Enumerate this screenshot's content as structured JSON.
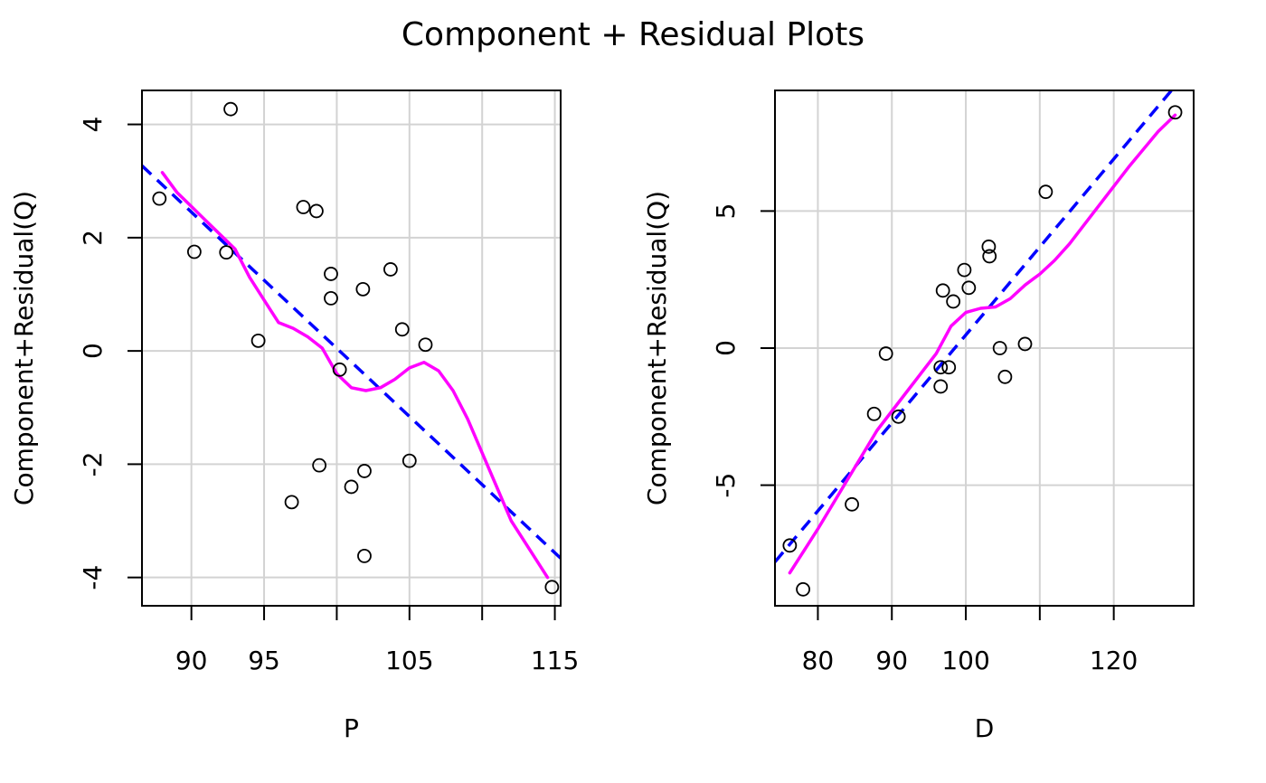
{
  "title": "Component + Residual Plots",
  "chart_data": [
    {
      "type": "scatter",
      "xlabel": "P",
      "ylabel": "Component+Residual(Q)",
      "xlim": [
        86.6,
        115.4
      ],
      "ylim": [
        -4.5,
        4.6
      ],
      "xticks": [
        90,
        95,
        100,
        105,
        110,
        115
      ],
      "xtick_labels": [
        "90",
        "95",
        "",
        "105",
        "",
        "115"
      ],
      "yticks": [
        -4,
        -2,
        0,
        2,
        4
      ],
      "ytick_labels": [
        "-4",
        "-2",
        "0",
        "2",
        "4"
      ],
      "grid": true,
      "points": {
        "x": [
          87.8,
          90.2,
          92.4,
          92.7,
          94.6,
          96.9,
          97.7,
          98.6,
          98.8,
          99.6,
          99.6,
          100.2,
          101.0,
          101.8,
          101.9,
          101.9,
          103.7,
          104.5,
          105.0,
          106.1,
          114.8
        ],
        "y": [
          2.69,
          1.75,
          1.74,
          4.27,
          0.18,
          -2.67,
          2.54,
          2.47,
          -2.02,
          1.36,
          0.93,
          -0.33,
          -2.4,
          1.09,
          -2.12,
          -3.62,
          1.44,
          0.38,
          -1.94,
          0.11,
          -4.17
        ]
      },
      "fit_line": {
        "color": "#0000ff",
        "style": "dashed",
        "x": [
          86.6,
          115.4
        ],
        "y": [
          3.27,
          -3.66
        ]
      },
      "smooth_line": {
        "color": "#ff00ff",
        "x": [
          88,
          89,
          90,
          91,
          92,
          93,
          94,
          95,
          96,
          97,
          98,
          99,
          100,
          101,
          102,
          103,
          104,
          105,
          106,
          107,
          108,
          109,
          110,
          111,
          112,
          113,
          114,
          114.5
        ],
        "y": [
          3.15,
          2.8,
          2.55,
          2.3,
          2.05,
          1.8,
          1.3,
          0.9,
          0.5,
          0.4,
          0.25,
          0.05,
          -0.4,
          -0.65,
          -0.7,
          -0.65,
          -0.5,
          -0.3,
          -0.2,
          -0.35,
          -0.7,
          -1.2,
          -1.8,
          -2.4,
          -3.0,
          -3.4,
          -3.8,
          -4.0
        ]
      }
    },
    {
      "type": "scatter",
      "xlabel": "D",
      "ylabel": "Component+Residual(Q)",
      "xlim": [
        74.2,
        130.8
      ],
      "ylim": [
        -9.4,
        9.4
      ],
      "xticks": [
        80,
        90,
        100,
        110,
        120
      ],
      "xtick_labels": [
        "80",
        "90",
        "100",
        "",
        "120"
      ],
      "yticks": [
        -5,
        0,
        5
      ],
      "ytick_labels": [
        "-5",
        "0",
        "5"
      ],
      "grid": true,
      "points": {
        "x": [
          76.2,
          78.0,
          84.6,
          87.6,
          89.2,
          90.9,
          96.6,
          96.6,
          96.9,
          97.7,
          98.3,
          99.8,
          100.4,
          103.1,
          103.2,
          104.6,
          105.3,
          108.0,
          110.8,
          128.3
        ],
        "y": [
          -7.2,
          -8.8,
          -5.7,
          -2.4,
          -0.2,
          -2.5,
          -0.7,
          -1.4,
          2.1,
          -0.7,
          1.7,
          2.85,
          2.2,
          3.7,
          3.35,
          0.0,
          -1.05,
          0.15,
          5.7,
          8.6
        ]
      },
      "fit_line": {
        "color": "#0000ff",
        "style": "dashed",
        "x": [
          74.2,
          127.8
        ],
        "y": [
          -7.8,
          9.4
        ]
      },
      "smooth_line": {
        "color": "#ff00ff",
        "x": [
          76.2,
          80,
          84,
          88,
          92,
          96,
          98,
          100,
          102,
          104,
          106,
          108,
          110,
          112,
          114,
          118,
          122,
          126,
          128.3
        ],
        "y": [
          -8.2,
          -6.6,
          -4.8,
          -3.0,
          -1.6,
          -0.2,
          0.8,
          1.3,
          1.45,
          1.5,
          1.8,
          2.3,
          2.7,
          3.2,
          3.8,
          5.2,
          6.6,
          7.9,
          8.5
        ]
      }
    }
  ]
}
